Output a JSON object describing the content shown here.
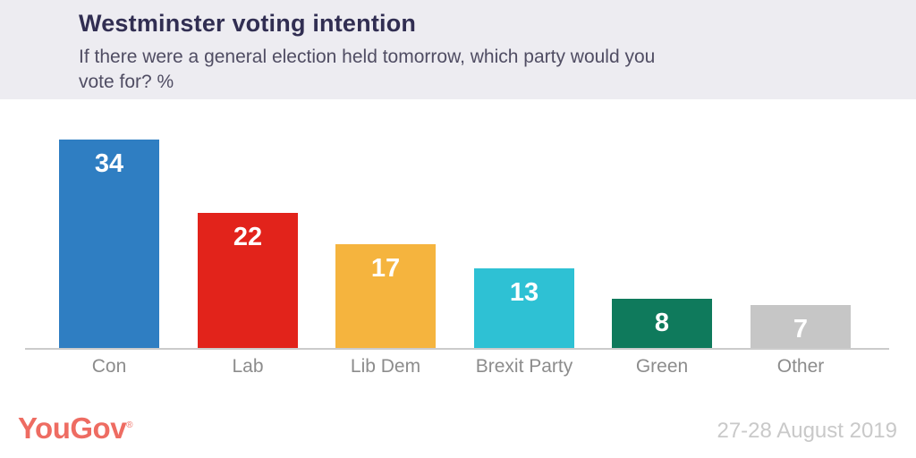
{
  "header": {
    "title": "Westminster voting intention",
    "subtitle_lines": [
      "If there were a general election held tomorrow, which party would you",
      "vote for? %"
    ]
  },
  "footer": {
    "logo_text": "YouGov",
    "registered_mark": "®",
    "date_range": "27-28 August 2019"
  },
  "colors": {
    "header_bg": "#EDECF1",
    "title": "#312E52",
    "subtitle": "#504D63",
    "axis_line": "#CBCBCB",
    "axis_label": "#8C8C8C",
    "bar_value": "#FFFFFF",
    "logo": "#EE6C62",
    "date": "#C9C9C9",
    "page_bg": "#FFFFFF"
  },
  "chart_data": {
    "type": "bar",
    "title": "Westminster voting intention",
    "subtitle": "If there were a general election held tomorrow, which party would you vote for? %",
    "unit": "%",
    "categories": [
      "Con",
      "Lab",
      "Lib Dem",
      "Brexit Party",
      "Green",
      "Other"
    ],
    "values": [
      34,
      22,
      17,
      13,
      8,
      7
    ],
    "bar_colors": [
      "#2F7EC2",
      "#E2231B",
      "#F5B43E",
      "#2EC1D4",
      "#0F7A5C",
      "#C6C6C6"
    ],
    "ylim": [
      0,
      40
    ],
    "grid": false,
    "legend": "none",
    "value_labels": "inside-top",
    "source": "YouGov",
    "date_range": "27-28 August 2019"
  }
}
